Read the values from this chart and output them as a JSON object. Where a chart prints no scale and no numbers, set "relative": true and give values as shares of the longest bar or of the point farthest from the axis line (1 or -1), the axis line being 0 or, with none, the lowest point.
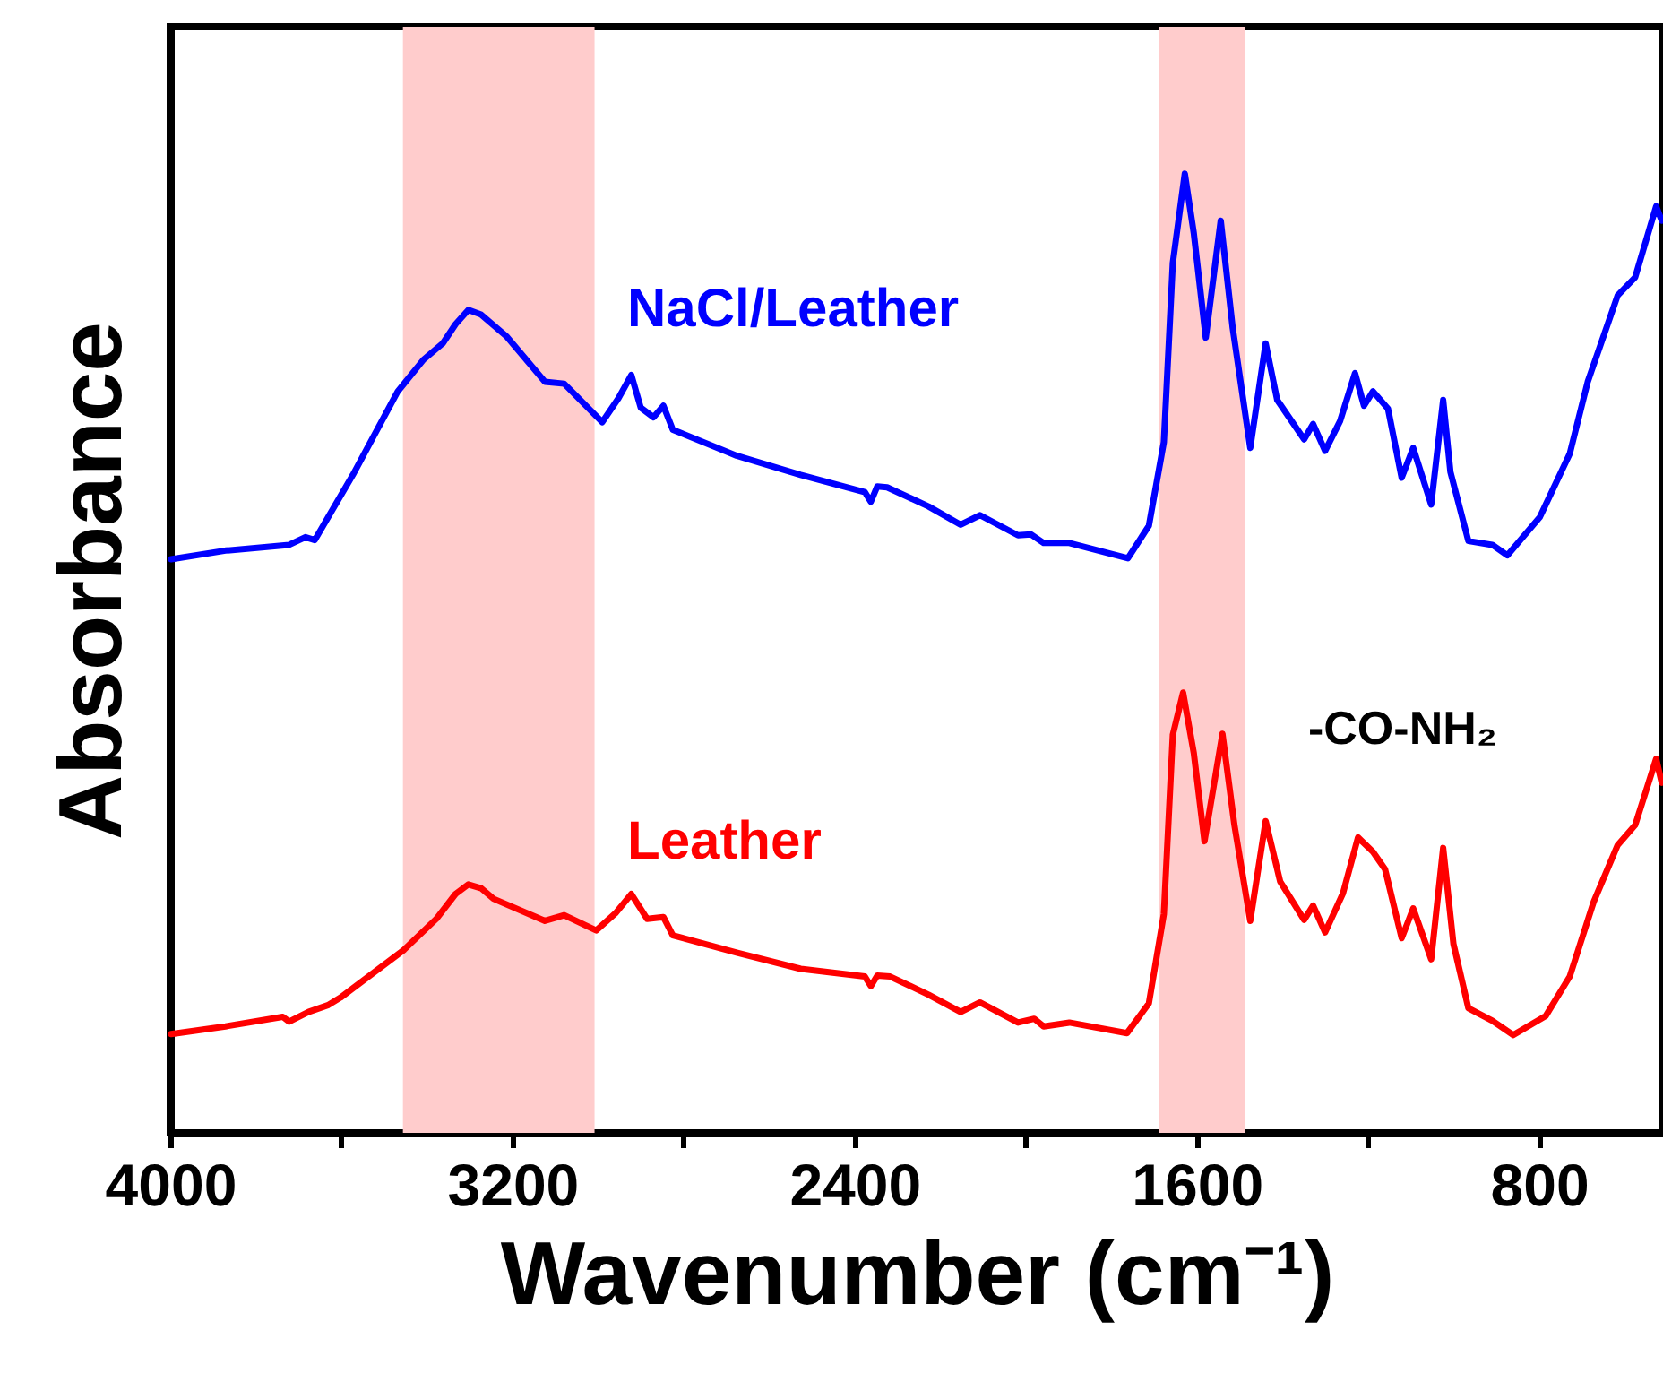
{
  "chart_data": {
    "type": "line",
    "relative": true,
    "xlabel": "Wavenumber (cm⁻¹)",
    "ylabel": "Absorbance",
    "xlim": [
      4000,
      510
    ],
    "xticks": [
      4000,
      {
        "value": 3600,
        "label": null
      },
      3200,
      {
        "value": 2800,
        "label": null
      },
      2400,
      {
        "value": 2000,
        "label": null
      },
      1600,
      {
        "value": 1200,
        "label": null
      },
      800
    ],
    "grid": false,
    "marker": "none",
    "line_style": "solid",
    "bands": [
      {
        "axis": "x",
        "from": 3456,
        "to": 3008,
        "color": "#ffcccc"
      },
      {
        "axis": "x",
        "from": 1689,
        "to": 1488,
        "color": "#ffcccc"
      }
    ],
    "annotations": [
      "-CO-NH₂"
    ],
    "series": [
      {
        "name": "NaCl/Leather",
        "color": "#0000ff",
        "x": [
          3998,
          3871,
          3722,
          3684,
          3662,
          3573,
          3468,
          3408,
          3363,
          3333,
          3303,
          3273,
          3213,
          3124,
          3079,
          2990,
          2952,
          2922,
          2900,
          2870,
          2847,
          2825,
          2676,
          2526,
          2376,
          2362,
          2347,
          2324,
          2227,
          2152,
          2107,
          2018,
          1988,
          1958,
          1898,
          1761,
          1712,
          1677,
          1656,
          1628,
          1607,
          1579,
          1544,
          1516,
          1475,
          1439,
          1412,
          1349,
          1328,
          1300,
          1265,
          1230,
          1209,
          1188,
          1153,
          1121,
          1094,
          1052,
          1024,
          1007,
          965,
          909,
          874,
          798,
          728,
          686,
          616,
          575,
          526,
          513
        ],
        "values": [
          0.598,
          0.607,
          0.613,
          0.621,
          0.618,
          0.686,
          0.773,
          0.806,
          0.823,
          0.843,
          0.858,
          0.853,
          0.83,
          0.783,
          0.781,
          0.741,
          0.766,
          0.79,
          0.756,
          0.746,
          0.758,
          0.733,
          0.706,
          0.686,
          0.668,
          0.658,
          0.674,
          0.673,
          0.653,
          0.634,
          0.644,
          0.623,
          0.624,
          0.615,
          0.615,
          0.599,
          0.633,
          0.72,
          0.907,
          1.0,
          0.938,
          0.829,
          0.951,
          0.839,
          0.714,
          0.823,
          0.764,
          0.723,
          0.739,
          0.711,
          0.742,
          0.792,
          0.758,
          0.773,
          0.755,
          0.683,
          0.714,
          0.655,
          0.764,
          0.689,
          0.617,
          0.613,
          0.602,
          0.642,
          0.708,
          0.783,
          0.873,
          0.892,
          0.966,
          0.951
        ]
      },
      {
        "name": "Leather",
        "color": "#ff0000",
        "x": [
          3998,
          3871,
          3737,
          3722,
          3677,
          3632,
          3602,
          3453,
          3378,
          3333,
          3303,
          3273,
          3244,
          3124,
          3079,
          3004,
          2959,
          2922,
          2885,
          2847,
          2825,
          2676,
          2526,
          2376,
          2362,
          2347,
          2317,
          2227,
          2152,
          2107,
          2018,
          1980,
          1958,
          1898,
          1763,
          1712,
          1677,
          1656,
          1632,
          1607,
          1582,
          1540,
          1512,
          1475,
          1439,
          1405,
          1349,
          1328,
          1300,
          1258,
          1223,
          1188,
          1160,
          1121,
          1094,
          1052,
          1024,
          1000,
          965,
          909,
          860,
          784,
          728,
          672,
          616,
          575,
          526,
          513
        ],
        "values": [
          0.103,
          0.111,
          0.121,
          0.116,
          0.126,
          0.133,
          0.141,
          0.191,
          0.223,
          0.249,
          0.259,
          0.255,
          0.244,
          0.221,
          0.227,
          0.211,
          0.229,
          0.249,
          0.223,
          0.225,
          0.206,
          0.188,
          0.171,
          0.163,
          0.153,
          0.164,
          0.163,
          0.144,
          0.126,
          0.136,
          0.115,
          0.119,
          0.111,
          0.115,
          0.104,
          0.135,
          0.228,
          0.415,
          0.459,
          0.396,
          0.304,
          0.416,
          0.321,
          0.221,
          0.325,
          0.262,
          0.222,
          0.237,
          0.209,
          0.25,
          0.308,
          0.293,
          0.275,
          0.203,
          0.234,
          0.181,
          0.297,
          0.197,
          0.13,
          0.117,
          0.102,
          0.122,
          0.163,
          0.241,
          0.3,
          0.321,
          0.39,
          0.365
        ]
      }
    ]
  }
}
